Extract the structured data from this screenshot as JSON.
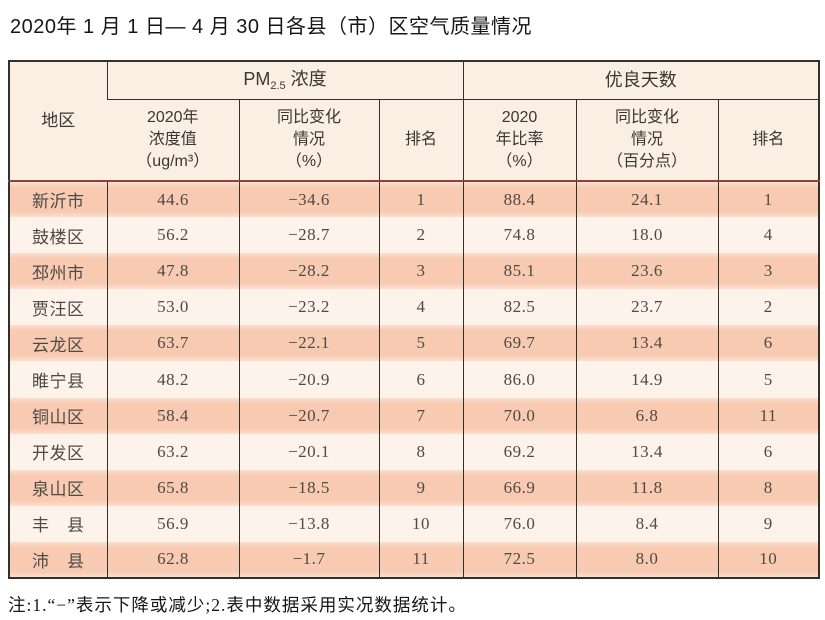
{
  "title": "2020年 1 月 1 日— 4 月 30 日各县（市）区空气质量情况",
  "table": {
    "header": {
      "region": "地区",
      "pm25_group": {
        "prefix": "PM",
        "sub": "2.5",
        "suffix": " 浓度"
      },
      "good_days_group": "优良天数",
      "pm_value": "2020年\n浓度值\n（ug/m³）",
      "pm_change": "同比变化\n情况\n（%）",
      "pm_rank": "排名",
      "rate_value": "2020\n年比率\n（%）",
      "rate_change": "同比变化\n情况\n（百分点）",
      "rate_rank": "排名"
    },
    "field_names": [
      "region",
      "pm-2020-value",
      "pm-yoy-change",
      "pm-rank",
      "good-days-rate",
      "good-days-yoy-change",
      "good-days-rank"
    ],
    "rows": [
      [
        "新沂市",
        "44.6",
        "−34.6",
        "1",
        "88.4",
        "24.1",
        "1"
      ],
      [
        "鼓楼区",
        "56.2",
        "−28.7",
        "2",
        "74.8",
        "18.0",
        "4"
      ],
      [
        "邳州市",
        "47.8",
        "−28.2",
        "3",
        "85.1",
        "23.6",
        "3"
      ],
      [
        "贾汪区",
        "53.0",
        "−23.2",
        "4",
        "82.5",
        "23.7",
        "2"
      ],
      [
        "云龙区",
        "63.7",
        "−22.1",
        "5",
        "69.7",
        "13.4",
        "6"
      ],
      [
        "睢宁县",
        "48.2",
        "−20.9",
        "6",
        "86.0",
        "14.9",
        "5"
      ],
      [
        "铜山区",
        "58.4",
        "−20.7",
        "7",
        "70.0",
        "6.8",
        "11"
      ],
      [
        "开发区",
        "63.2",
        "−20.1",
        "8",
        "69.2",
        "13.4",
        "6"
      ],
      [
        "泉山区",
        "65.8",
        "−18.5",
        "9",
        "66.9",
        "11.8",
        "8"
      ],
      [
        "丰　县",
        "56.9",
        "−13.8",
        "10",
        "76.0",
        "8.4",
        "9"
      ],
      [
        "沛　县",
        "62.8",
        "−1.7",
        "11",
        "72.5",
        "8.0",
        "10"
      ]
    ]
  },
  "note": "注:1.“−”表示下降或减少;2.表中数据采用实况数据统计。",
  "colors": {
    "line_dark": "#33302b",
    "separator_red": "#8e4233",
    "header_bg": "#fbeee2",
    "stripe_dark": "#f8cab1",
    "stripe_edge": "#fbdfd0",
    "stripe_light": "#fdf3ea"
  }
}
